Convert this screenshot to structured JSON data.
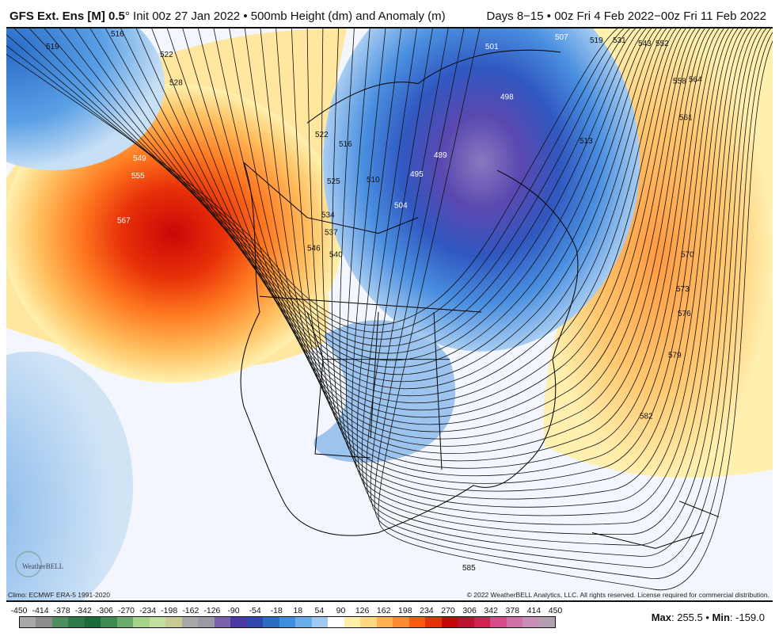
{
  "header": {
    "model": "GFS Ext.  Ens [M] 0.5",
    "degree": "°",
    "init": " Init 00z 27 Jan 2022 • 500mb Height (dm) and Anomaly (m)",
    "valid": "Days 8−15 • 00z Fri 4 Feb 2022−00z Fri 11 Feb 2022"
  },
  "footer": {
    "climo": "Climo: ECMWF ERA-5 1991-2020",
    "copyright": "© 2022 WeatherBELL Analytics, LLC. All rights reserved. License required for commercial distribution.",
    "logo_text": "WeatherBELL",
    "max_label": "Max",
    "max_value": ": 255.5 • ",
    "min_label": "Min",
    "min_value": ": -159.0"
  },
  "colorbar": {
    "ticks": [
      "-450",
      "-414",
      "-378",
      "-342",
      "-306",
      "-270",
      "-234",
      "-198",
      "-162",
      "-126",
      "-90",
      "-54",
      "-18",
      "18",
      "54",
      "90",
      "126",
      "162",
      "198",
      "234",
      "270",
      "306",
      "342",
      "378",
      "414",
      "450"
    ],
    "colors": [
      "#a9a9a9",
      "#8c8c8c",
      "#4f8f5f",
      "#2f7a48",
      "#1e6b3a",
      "#3d8a50",
      "#6aaa6a",
      "#a6d38a",
      "#c2dfa0",
      "#c9c996",
      "#a8a8a8",
      "#9a9aa6",
      "#7a62ae",
      "#4b3aa6",
      "#3048b0",
      "#2b6cc4",
      "#3f8fe0",
      "#6aaee9",
      "#a0c8f0",
      "#ffffff",
      "#fff2a8",
      "#ffd880",
      "#ffb050",
      "#ff8a30",
      "#ff5a10",
      "#e83008",
      "#c80808",
      "#c01030",
      "#d42050",
      "#d84a8a",
      "#d070a8",
      "#c890b8",
      "#b0a0b0"
    ]
  },
  "contour_labels": [
    "519",
    "516",
    "522",
    "528",
    "549",
    "555",
    "567",
    "501",
    "507",
    "519",
    "531",
    "543",
    "552",
    "558",
    "564",
    "561",
    "513",
    "498",
    "489",
    "495",
    "504",
    "510",
    "516",
    "522",
    "525",
    "534",
    "537",
    "540",
    "546",
    "570",
    "573",
    "576",
    "579",
    "582",
    "585"
  ],
  "colors": {
    "ridge": "#d80a0a",
    "trough": "#4a40b0",
    "background": "#f3f6fc"
  }
}
